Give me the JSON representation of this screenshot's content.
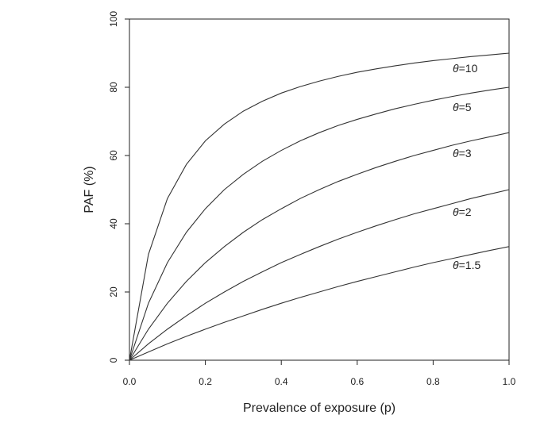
{
  "chart_data": {
    "type": "line",
    "xlabel": "Prevalence of exposure (p)",
    "ylabel": "PAF (%)",
    "xlim": [
      0,
      1
    ],
    "ylim": [
      0,
      100
    ],
    "x_ticks": [
      0.0,
      0.2,
      0.4,
      0.6,
      0.8,
      1.0
    ],
    "x_tick_labels": [
      "0.0",
      "0.2",
      "0.4",
      "0.6",
      "0.8",
      "1.0"
    ],
    "y_ticks": [
      0,
      20,
      40,
      60,
      80,
      100
    ],
    "y_tick_labels": [
      "0",
      "20",
      "40",
      "60",
      "80",
      "100"
    ],
    "grid": false,
    "x": [
      0.0,
      0.05,
      0.1,
      0.15,
      0.2,
      0.25,
      0.3,
      0.35,
      0.4,
      0.45,
      0.5,
      0.55,
      0.6,
      0.65,
      0.7,
      0.75,
      0.8,
      0.85,
      0.9,
      0.95,
      1.0
    ],
    "series": [
      {
        "name": "θ=10",
        "theta_symbol": "θ",
        "theta_value": "=10",
        "values": [
          0.0,
          31.0,
          47.4,
          57.4,
          64.3,
          69.2,
          73.0,
          75.9,
          78.3,
          80.2,
          81.8,
          83.2,
          84.4,
          85.4,
          86.3,
          87.1,
          87.8,
          88.4,
          89.0,
          89.5,
          90.0
        ]
      },
      {
        "name": "θ=5",
        "theta_symbol": "θ",
        "theta_value": "=5",
        "values": [
          0.0,
          16.7,
          28.6,
          37.5,
          44.4,
          50.0,
          54.5,
          58.3,
          61.5,
          64.3,
          66.7,
          68.8,
          70.6,
          72.2,
          73.7,
          75.0,
          76.2,
          77.3,
          78.3,
          79.2,
          80.0
        ]
      },
      {
        "name": "θ=3",
        "theta_symbol": "θ",
        "theta_value": "=3",
        "values": [
          0.0,
          9.1,
          16.7,
          23.1,
          28.6,
          33.3,
          37.5,
          41.2,
          44.4,
          47.4,
          50.0,
          52.4,
          54.5,
          56.5,
          58.3,
          60.0,
          61.5,
          63.0,
          64.3,
          65.5,
          66.7
        ]
      },
      {
        "name": "θ=2",
        "theta_symbol": "θ",
        "theta_value": "=2",
        "values": [
          0.0,
          4.8,
          9.1,
          13.0,
          16.7,
          20.0,
          23.1,
          25.9,
          28.6,
          31.0,
          33.3,
          35.5,
          37.5,
          39.4,
          41.2,
          42.9,
          44.4,
          45.9,
          47.4,
          48.7,
          50.0
        ]
      },
      {
        "name": "θ=1.5",
        "theta_symbol": "θ",
        "theta_value": "=1.5",
        "values": [
          0.0,
          2.4,
          4.8,
          7.0,
          9.1,
          11.1,
          13.0,
          14.9,
          16.7,
          18.4,
          20.0,
          21.6,
          23.1,
          24.5,
          25.9,
          27.3,
          28.6,
          29.8,
          31.0,
          32.2,
          33.3
        ]
      }
    ]
  }
}
